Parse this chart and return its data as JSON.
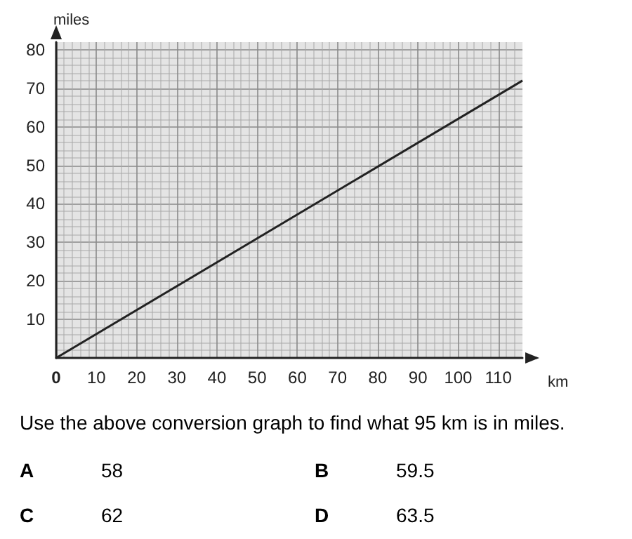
{
  "chart_data": {
    "type": "line",
    "xlabel": "km",
    "ylabel": "miles",
    "x": [
      0,
      116
    ],
    "series": [
      {
        "color": "#222222",
        "values": [
          0,
          72
        ]
      }
    ],
    "xlim": [
      0,
      116
    ],
    "ylim": [
      0,
      82
    ],
    "xticks": [
      0,
      10,
      20,
      30,
      40,
      50,
      60,
      70,
      80,
      90,
      100,
      110
    ],
    "yticks": [
      10,
      20,
      30,
      40,
      50,
      60,
      70,
      80
    ],
    "grid": true,
    "marker": "none",
    "line_style": "solid",
    "annotations": [
      "Use the above conversion graph to find what 95 km is in miles.",
      "A",
      "58",
      "B",
      "59.5",
      "C",
      "62",
      "D",
      "63.5"
    ]
  }
}
